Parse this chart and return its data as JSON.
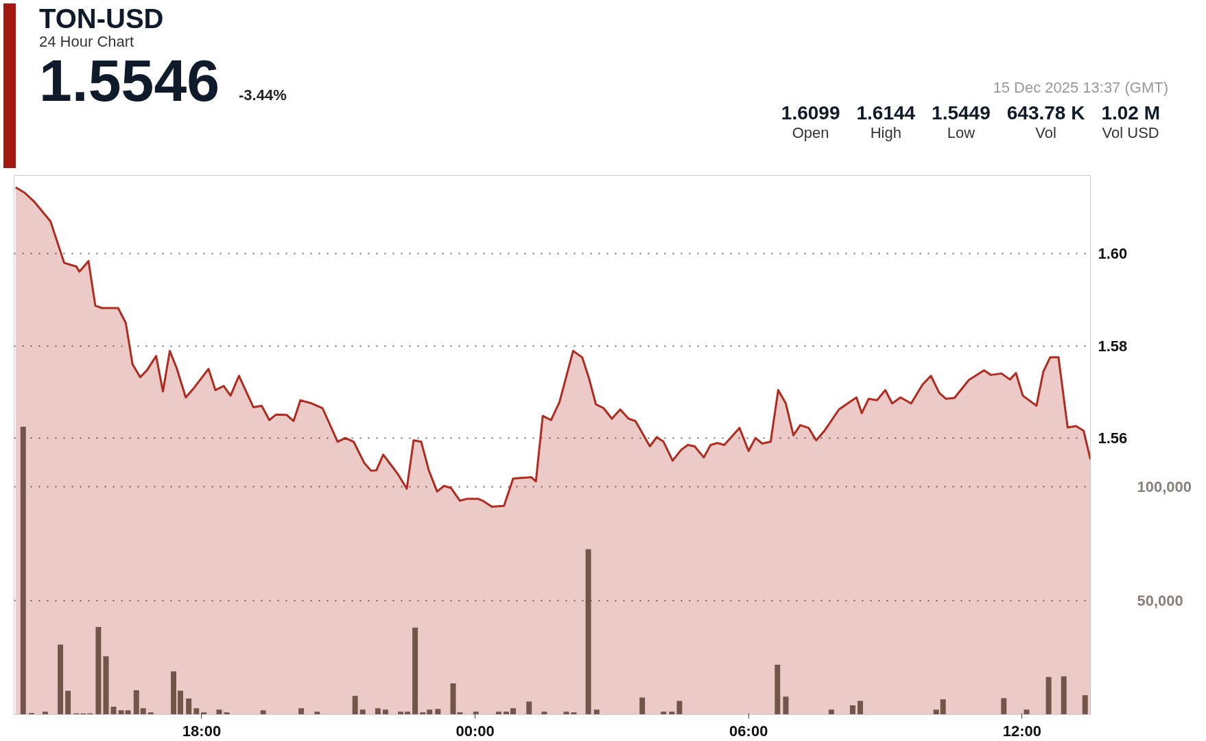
{
  "chart_data": {
    "type": "area",
    "title": "TON-USD",
    "subtitle": "24 Hour Chart",
    "annotations": [
      "1.5546",
      "-3.44%",
      "15 Dec 2025 13:37 (GMT)",
      "1.6099",
      "Open",
      "1.6144",
      "High",
      "1.5449",
      "Low",
      "643.78 K",
      "Vol",
      "1.02 M",
      "Vol USD"
    ],
    "xlim": [
      "2025-12-14T13:53",
      "2025-12-15T13:30"
    ],
    "ylim": [
      1.5,
      1.617
    ],
    "y2lim": [
      0,
      236800
    ],
    "xticks": [
      {
        "value": "2025-12-14T18:00",
        "label": "18:00"
      },
      {
        "value": "2025-12-15T00:00",
        "label": "00:00"
      },
      {
        "value": "2025-12-15T06:00",
        "label": "06:00"
      },
      {
        "value": "2025-12-15T12:00",
        "label": "12:00"
      }
    ],
    "yticks": [
      1.56,
      1.58,
      {
        "value": 1.6,
        "label": "1.60"
      }
    ],
    "y2ticks": [
      {
        "value": 50000,
        "label": "50,000"
      },
      {
        "value": 100000,
        "label": "100,000"
      }
    ],
    "grid": "y",
    "series": [
      {
        "color": "#b22a1e",
        "x": [
          "2025-12-14T13:55",
          "2025-12-14T14:07",
          "2025-12-14T14:20",
          "2025-12-14T14:41",
          "2025-12-14T14:59",
          "2025-12-14T15:15",
          "2025-12-14T15:19",
          "2025-12-14T15:31",
          "2025-12-14T15:40",
          "2025-12-14T15:49",
          "2025-12-14T16:10",
          "2025-12-14T16:20",
          "2025-12-14T16:29",
          "2025-12-14T16:39",
          "2025-12-14T16:48",
          "2025-12-14T17:00",
          "2025-12-14T17:09",
          "2025-12-14T17:18",
          "2025-12-14T17:27",
          "2025-12-14T17:39",
          "2025-12-14T17:50",
          "2025-12-14T18:09",
          "2025-12-14T18:18",
          "2025-12-14T18:29",
          "2025-12-14T18:38",
          "2025-12-14T18:49",
          "2025-12-14T19:08",
          "2025-12-14T19:19",
          "2025-12-14T19:29",
          "2025-12-14T19:38",
          "2025-12-14T19:52",
          "2025-12-14T20:01",
          "2025-12-14T20:10",
          "2025-12-14T20:25",
          "2025-12-14T20:39",
          "2025-12-14T20:59",
          "2025-12-14T21:09",
          "2025-12-14T21:20",
          "2025-12-14T21:34",
          "2025-12-14T21:43",
          "2025-12-14T21:50",
          "2025-12-14T21:59",
          "2025-12-14T22:10",
          "2025-12-14T22:19",
          "2025-12-14T22:30",
          "2025-12-14T22:39",
          "2025-12-14T22:49",
          "2025-12-14T22:59",
          "2025-12-14T23:10",
          "2025-12-14T23:19",
          "2025-12-14T23:28",
          "2025-12-14T23:40",
          "2025-12-14T23:49",
          "2025-12-15T00:04",
          "2025-12-15T00:10",
          "2025-12-15T00:22",
          "2025-12-15T00:38",
          "2025-12-15T00:50",
          "2025-12-15T01:14",
          "2025-12-15T01:20",
          "2025-12-15T01:29",
          "2025-12-15T01:40",
          "2025-12-15T01:51",
          "2025-12-15T02:09",
          "2025-12-15T02:21",
          "2025-12-15T02:30",
          "2025-12-15T02:39",
          "2025-12-15T02:49",
          "2025-12-15T03:00",
          "2025-12-15T03:11",
          "2025-12-15T03:22",
          "2025-12-15T03:31",
          "2025-12-15T03:50",
          "2025-12-15T03:59",
          "2025-12-15T04:08",
          "2025-12-15T04:20",
          "2025-12-15T04:31",
          "2025-12-15T04:40",
          "2025-12-15T04:49",
          "2025-12-15T05:01",
          "2025-12-15T05:10",
          "2025-12-15T05:19",
          "2025-12-15T05:28",
          "2025-12-15T05:48",
          "2025-12-15T06:00",
          "2025-12-15T06:09",
          "2025-12-15T06:18",
          "2025-12-15T06:29",
          "2025-12-15T06:39",
          "2025-12-15T06:49",
          "2025-12-15T06:59",
          "2025-12-15T07:08",
          "2025-12-15T07:19",
          "2025-12-15T07:29",
          "2025-12-15T07:40",
          "2025-12-15T07:59",
          "2025-12-15T08:13",
          "2025-12-15T08:22",
          "2025-12-15T08:29",
          "2025-12-15T08:38",
          "2025-12-15T08:49",
          "2025-12-15T09:00",
          "2025-12-15T09:09",
          "2025-12-15T09:20",
          "2025-12-15T09:34",
          "2025-12-15T09:49",
          "2025-12-15T10:00",
          "2025-12-15T10:11",
          "2025-12-15T10:20",
          "2025-12-15T10:31",
          "2025-12-15T10:50",
          "2025-12-15T11:10",
          "2025-12-15T11:19",
          "2025-12-15T11:33",
          "2025-12-15T11:44",
          "2025-12-15T11:52",
          "2025-12-15T12:01",
          "2025-12-15T12:19",
          "2025-12-15T12:28",
          "2025-12-15T12:37",
          "2025-12-15T12:48",
          "2025-12-15T13:00",
          "2025-12-15T13:11",
          "2025-12-15T13:21",
          "2025-12-15T13:30"
        ],
        "values": [
          1.6144,
          1.6132,
          1.6112,
          1.607,
          1.598,
          1.5972,
          1.5961,
          1.5984,
          1.5887,
          1.5882,
          1.5882,
          1.585,
          1.576,
          1.5732,
          1.5747,
          1.5778,
          1.5701,
          1.5789,
          1.5752,
          1.5688,
          1.5709,
          1.575,
          1.5704,
          1.5713,
          1.5692,
          1.5735,
          1.5667,
          1.567,
          1.5639,
          1.5651,
          1.565,
          1.5637,
          1.5682,
          1.5675,
          1.5665,
          1.5592,
          1.56,
          1.5592,
          1.5546,
          1.5529,
          1.553,
          1.5564,
          1.554,
          1.552,
          1.549,
          1.5595,
          1.5592,
          1.553,
          1.5484,
          1.5496,
          1.5492,
          1.5464,
          1.5468,
          1.5468,
          1.5464,
          1.5451,
          1.5453,
          1.5512,
          1.5515,
          1.5506,
          1.5648,
          1.5639,
          1.5678,
          1.5789,
          1.5775,
          1.5729,
          1.5673,
          1.5665,
          1.5642,
          1.5662,
          1.5642,
          1.5637,
          1.5582,
          1.5602,
          1.5592,
          1.5551,
          1.5574,
          1.5585,
          1.5582,
          1.5558,
          1.5585,
          1.5589,
          1.5585,
          1.5622,
          1.5572,
          1.56,
          1.5588,
          1.5592,
          1.5704,
          1.5675,
          1.5606,
          1.5628,
          1.5622,
          1.5595,
          1.5616,
          1.5662,
          1.5678,
          1.5688,
          1.5654,
          1.5685,
          1.5682,
          1.5704,
          1.5675,
          1.5688,
          1.5675,
          1.5716,
          1.5735,
          1.5698,
          1.5685,
          1.5687,
          1.5726,
          1.5747,
          1.5737,
          1.574,
          1.5727,
          1.5741,
          1.5692,
          1.567,
          1.5744,
          1.5775,
          1.5775,
          1.5623,
          1.5626,
          1.5616,
          1.5554
        ]
      },
      {
        "type": "bar",
        "axis": "y2",
        "color": "#5f6358",
        "x": [
          "2025-12-14T14:05",
          "2025-12-14T14:16",
          "2025-12-14T14:34",
          "2025-12-14T14:54",
          "2025-12-14T15:04",
          "2025-12-14T15:15",
          "2025-12-14T15:24",
          "2025-12-14T15:33",
          "2025-12-14T15:44",
          "2025-12-14T15:54",
          "2025-12-14T16:04",
          "2025-12-14T16:14",
          "2025-12-14T16:23",
          "2025-12-14T16:34",
          "2025-12-14T16:43",
          "2025-12-14T16:53",
          "2025-12-14T17:23",
          "2025-12-14T17:32",
          "2025-12-14T17:43",
          "2025-12-14T17:53",
          "2025-12-14T18:03",
          "2025-12-14T18:23",
          "2025-12-14T18:33",
          "2025-12-14T19:21",
          "2025-12-14T20:11",
          "2025-12-14T20:32",
          "2025-12-14T21:22",
          "2025-12-14T21:32",
          "2025-12-14T21:52",
          "2025-12-14T22:02",
          "2025-12-14T22:22",
          "2025-12-14T22:31",
          "2025-12-14T22:41",
          "2025-12-14T22:51",
          "2025-12-14T23:00",
          "2025-12-14T23:11",
          "2025-12-14T23:31",
          "2025-12-14T23:40",
          "2025-12-15T00:01",
          "2025-12-15T00:31",
          "2025-12-15T00:41",
          "2025-12-15T00:50",
          "2025-12-15T01:11",
          "2025-12-15T01:31",
          "2025-12-15T02:00",
          "2025-12-15T02:10",
          "2025-12-15T02:29",
          "2025-12-15T02:40",
          "2025-12-15T03:40",
          "2025-12-15T04:08",
          "2025-12-15T04:19",
          "2025-12-15T04:29",
          "2025-12-15T06:38",
          "2025-12-15T06:49",
          "2025-12-15T07:49",
          "2025-12-15T08:17",
          "2025-12-15T08:27",
          "2025-12-15T10:07",
          "2025-12-15T10:16",
          "2025-12-15T11:36",
          "2025-12-15T12:06",
          "2025-12-15T12:35",
          "2025-12-15T12:55",
          "2025-12-15T13:23"
        ],
        "values": [
          126400,
          700,
          1300,
          30700,
          10500,
          500,
          500,
          500,
          38500,
          25600,
          3500,
          1900,
          1900,
          10700,
          2800,
          1000,
          19000,
          10500,
          7100,
          2800,
          1000,
          2200,
          1000,
          1900,
          2800,
          1300,
          8200,
          2200,
          2800,
          2200,
          1300,
          1300,
          38200,
          1000,
          2200,
          2500,
          13700,
          1000,
          1300,
          1300,
          1300,
          2800,
          5700,
          1300,
          1300,
          1000,
          72600,
          2200,
          7500,
          1300,
          1300,
          6000,
          21900,
          7900,
          2200,
          4100,
          6000,
          2200,
          6700,
          7200,
          2200,
          16500,
          16800,
          8500
        ]
      }
    ]
  }
}
